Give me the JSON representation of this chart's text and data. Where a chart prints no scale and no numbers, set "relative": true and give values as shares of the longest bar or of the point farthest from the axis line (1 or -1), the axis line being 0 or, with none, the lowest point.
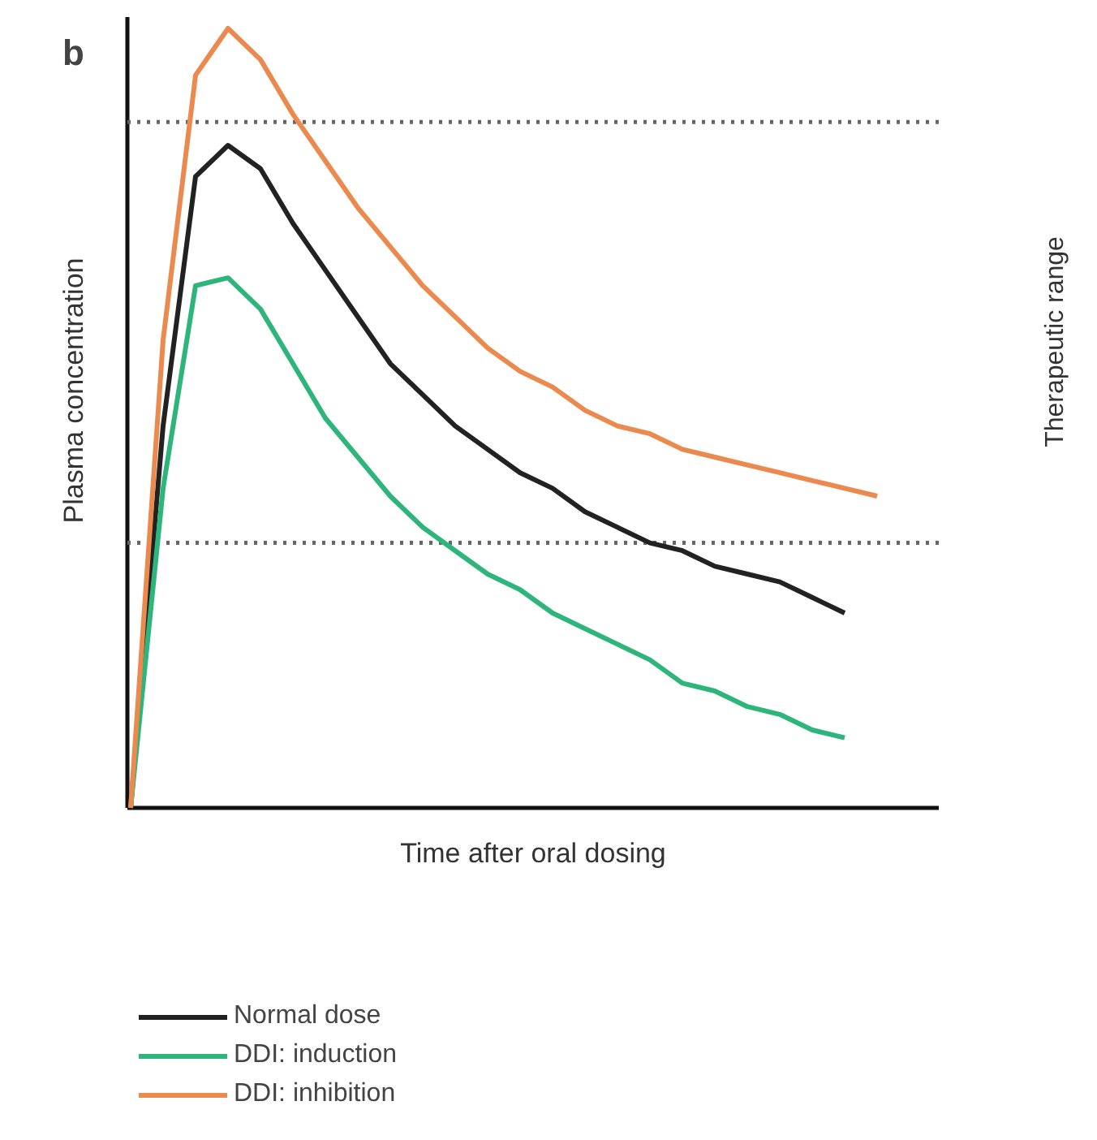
{
  "chart_data": {
    "type": "line",
    "title": "b",
    "xlabel": "Time after oral dosing",
    "ylabel": "Plasma concentration",
    "relative": true,
    "legend": "bottom",
    "grid": false,
    "tick_labels": false,
    "line_style": "solid",
    "marker": "none",
    "categories": [
      null,
      null,
      null,
      null,
      null,
      null,
      null,
      null,
      null,
      null,
      null,
      null,
      null,
      null,
      null,
      null,
      null,
      null,
      null,
      null,
      null,
      null,
      null,
      null
    ],
    "series": [
      {
        "name": "Normal dose",
        "color": "#222222",
        "values": [
          0,
          0.49,
          0.81,
          0.85,
          0.82,
          0.75,
          0.69,
          0.63,
          0.57,
          0.53,
          0.49,
          0.46,
          0.43,
          0.41,
          0.38,
          0.36,
          0.34,
          0.33,
          0.31,
          0.3,
          0.29,
          0.27,
          0.25,
          null
        ]
      },
      {
        "name": "DDI: induction",
        "color": "#2eb57c",
        "values": [
          0,
          0.41,
          0.67,
          0.68,
          0.64,
          0.57,
          0.5,
          0.45,
          0.4,
          0.36,
          0.33,
          0.3,
          0.28,
          0.25,
          0.23,
          0.21,
          0.19,
          0.16,
          0.15,
          0.13,
          0.12,
          0.1,
          0.09,
          null
        ]
      },
      {
        "name": "DDI: inhibition",
        "color": "#ea8a4e",
        "values": [
          0,
          0.6,
          0.94,
          1,
          0.96,
          0.89,
          0.83,
          0.77,
          0.72,
          0.67,
          0.63,
          0.59,
          0.56,
          0.54,
          0.51,
          0.49,
          0.48,
          0.46,
          0.45,
          0.44,
          0.43,
          0.42,
          0.41,
          0.4
        ]
      }
    ],
    "ref_lines": [
      {
        "axis": "y",
        "value": 0.88,
        "line_style": "dotted",
        "color": "#666666"
      },
      {
        "axis": "y",
        "value": 0.34,
        "line_style": "dotted",
        "color": "#666666"
      }
    ],
    "annotations": [
      "Therapeutic range"
    ]
  }
}
